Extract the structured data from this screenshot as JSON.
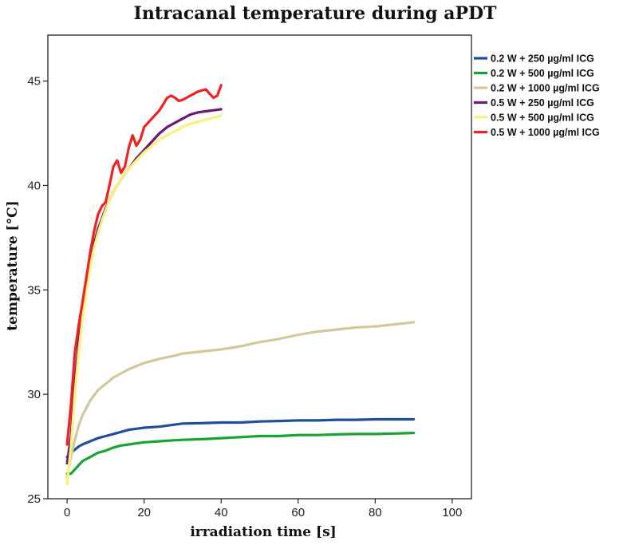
{
  "chart_data": {
    "type": "line",
    "title": "Intracanal temperature during aPDT",
    "xlabel": "irradiation time [s]",
    "ylabel": "temperature [°C]",
    "xlim": [
      -5,
      105
    ],
    "ylim": [
      25,
      47.2
    ],
    "xticks": [
      0,
      20,
      40,
      60,
      80,
      100
    ],
    "yticks": [
      25,
      30,
      35,
      40,
      45
    ],
    "grid": false,
    "legend_position": "top-right, outside plot",
    "series": [
      {
        "name": "0.2 W + 250 µg/ml ICG",
        "color": "#1f4e9a",
        "x": [
          0,
          1,
          2,
          3,
          4,
          6,
          8,
          10,
          12,
          14,
          16,
          18,
          20,
          24,
          28,
          30,
          35,
          40,
          45,
          50,
          55,
          60,
          65,
          70,
          75,
          80,
          85,
          90
        ],
        "y": [
          27.0,
          27.2,
          27.35,
          27.5,
          27.6,
          27.75,
          27.9,
          28.0,
          28.1,
          28.2,
          28.3,
          28.35,
          28.4,
          28.45,
          28.55,
          28.6,
          28.62,
          28.65,
          28.65,
          28.7,
          28.72,
          28.75,
          28.75,
          28.78,
          28.78,
          28.8,
          28.8,
          28.8
        ]
      },
      {
        "name": "0.2 W + 500 µg/ml ICG",
        "color": "#1aa334",
        "x": [
          0,
          1,
          2,
          3,
          4,
          6,
          8,
          10,
          12,
          14,
          16,
          18,
          20,
          24,
          28,
          30,
          35,
          40,
          45,
          50,
          55,
          60,
          65,
          70,
          75,
          80,
          85,
          90
        ],
        "y": [
          26.2,
          26.2,
          26.4,
          26.6,
          26.8,
          27.0,
          27.2,
          27.3,
          27.45,
          27.55,
          27.6,
          27.65,
          27.7,
          27.75,
          27.8,
          27.82,
          27.85,
          27.9,
          27.95,
          28.0,
          28.0,
          28.05,
          28.05,
          28.08,
          28.1,
          28.1,
          28.12,
          28.15
        ]
      },
      {
        "name": "0.2 W + 1000 µg/ml ICG",
        "color": "#d2c99a",
        "x": [
          0,
          1,
          2,
          3,
          4,
          6,
          8,
          10,
          12,
          14,
          16,
          18,
          20,
          24,
          28,
          30,
          35,
          40,
          45,
          50,
          55,
          60,
          65,
          70,
          75,
          80,
          85,
          90
        ],
        "y": [
          26.0,
          27.0,
          27.8,
          28.5,
          29.0,
          29.7,
          30.2,
          30.5,
          30.8,
          31.0,
          31.2,
          31.35,
          31.5,
          31.7,
          31.85,
          31.95,
          32.05,
          32.15,
          32.3,
          32.5,
          32.65,
          32.85,
          33.0,
          33.1,
          33.2,
          33.25,
          33.35,
          33.45
        ]
      },
      {
        "name": "0.5 W + 250 µg/ml ICG",
        "color": "#6a1a72",
        "x": [
          0,
          1,
          2,
          3,
          4,
          5,
          6,
          7,
          8,
          9,
          10,
          11,
          12,
          14,
          16,
          18,
          20,
          22,
          24,
          26,
          28,
          30,
          32,
          34,
          36,
          38,
          40
        ],
        "y": [
          26.7,
          28.0,
          30.5,
          32.5,
          34.0,
          35.3,
          36.3,
          37.2,
          37.9,
          38.4,
          38.9,
          39.3,
          39.7,
          40.3,
          40.8,
          41.3,
          41.7,
          42.1,
          42.5,
          42.8,
          43.0,
          43.2,
          43.4,
          43.5,
          43.55,
          43.6,
          43.65
        ]
      },
      {
        "name": "0.5 W + 500 µg/ml ICG",
        "color": "#f6f27a",
        "x": [
          0,
          1,
          2,
          3,
          4,
          5,
          6,
          7,
          8,
          9,
          10,
          11,
          12,
          14,
          16,
          18,
          20,
          22,
          24,
          26,
          28,
          30,
          32,
          34,
          36,
          38,
          40
        ],
        "y": [
          25.7,
          27.5,
          30.0,
          32.0,
          33.6,
          35.0,
          36.1,
          37.0,
          37.7,
          38.3,
          38.8,
          39.3,
          39.7,
          40.3,
          40.8,
          41.2,
          41.6,
          41.9,
          42.2,
          42.4,
          42.6,
          42.8,
          42.95,
          43.05,
          43.15,
          43.25,
          43.35
        ]
      },
      {
        "name": "0.5 W + 1000 µg/ml ICG",
        "color": "#ee2222",
        "x": [
          0,
          1,
          2,
          3,
          4,
          5,
          6,
          7,
          8,
          9,
          10,
          11,
          12,
          13,
          14,
          15,
          16,
          17,
          18,
          19,
          20,
          22,
          24,
          26,
          27,
          28,
          29,
          30,
          32,
          34,
          36,
          37,
          38,
          39,
          40
        ],
        "y": [
          27.6,
          29.5,
          32.0,
          33.3,
          34.4,
          35.6,
          36.8,
          37.8,
          38.6,
          39.0,
          39.2,
          40.0,
          40.9,
          41.2,
          40.6,
          40.9,
          41.8,
          42.4,
          41.9,
          42.2,
          42.8,
          43.2,
          43.6,
          44.2,
          44.3,
          44.2,
          44.05,
          44.1,
          44.3,
          44.5,
          44.6,
          44.4,
          44.2,
          44.3,
          44.8
        ]
      }
    ]
  }
}
